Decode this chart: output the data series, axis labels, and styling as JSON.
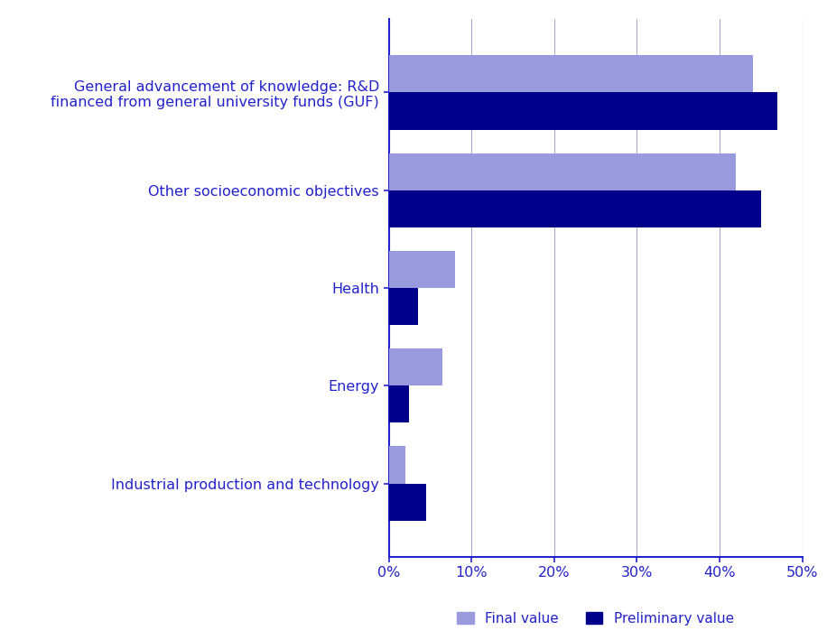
{
  "categories": [
    "Industrial production and technology",
    "Energy",
    "Health",
    "Other socioeconomic objectives",
    "General advancement of knowledge: R&D\nfinanced from general university funds (GUF)"
  ],
  "final_values": [
    2.0,
    6.5,
    8.0,
    42.0,
    44.0
  ],
  "preliminary_values": [
    4.5,
    2.5,
    3.5,
    45.0,
    47.0
  ],
  "final_color": "#9999DD",
  "preliminary_color": "#00008B",
  "label_color": "#2222CC",
  "axis_color": "#2222CC",
  "grid_color": "#AAAACC",
  "background_color": "#FFFFFF",
  "bar_height": 0.38,
  "xlim": [
    0,
    50
  ],
  "xticks": [
    0,
    10,
    20,
    30,
    40,
    50
  ],
  "xticklabels": [
    "0%",
    "10%",
    "20%",
    "30%",
    "40%",
    "50%"
  ],
  "legend_final": "Final value",
  "legend_preliminary": "Preliminary value",
  "label_fontsize": 11.5,
  "tick_fontsize": 11.5,
  "legend_fontsize": 11
}
